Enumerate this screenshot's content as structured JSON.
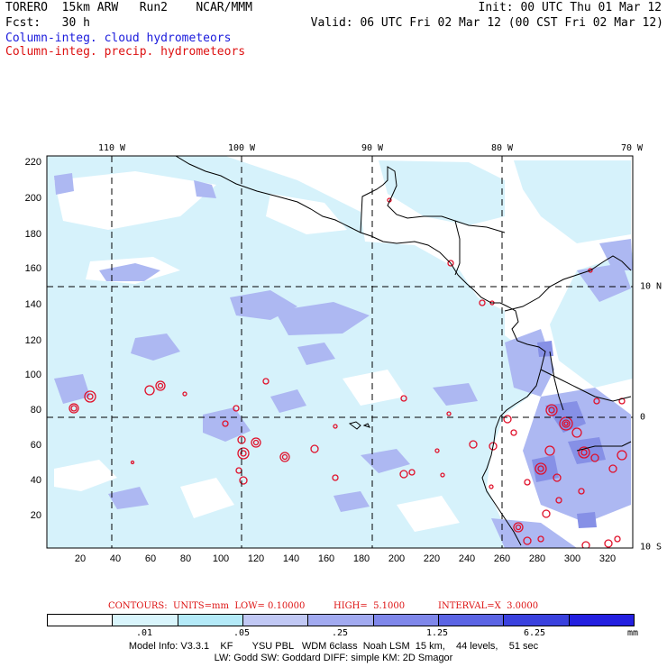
{
  "header": {
    "model_line": "TORERO  15km ARW   Run2    NCAR/MMM",
    "init": "Init: 00 UTC Thu 01 Mar 12",
    "fcst": "Fcst:   30 h",
    "valid": "Valid: 06 UTC Fri 02 Mar 12 (00 CST Fri 02 Mar 12)",
    "field1": "Column-integ. cloud hydrometeors",
    "field2": "Column-integ. precip. hydrometeors"
  },
  "map": {
    "lon_labels": [
      "110 W",
      "100 W",
      "90 W",
      "80 W",
      "70 W"
    ],
    "lat_labels": [
      "10 N",
      "0",
      "10 S"
    ],
    "y_ticks": [
      "220",
      "200",
      "180",
      "160",
      "140",
      "120",
      "100",
      "80",
      "60",
      "40",
      "20"
    ],
    "x_ticks": [
      "20",
      "40",
      "60",
      "80",
      "100",
      "120",
      "140",
      "160",
      "180",
      "200",
      "220",
      "240",
      "260",
      "280",
      "300",
      "320"
    ],
    "colors": {
      "water_bg": "#ffffff",
      "fill_light": "#d6f2fb",
      "fill_mid": "#adb8f2",
      "fill_strong": "#8690e6",
      "precip_contour": "#e0102a",
      "coast": "#000000"
    }
  },
  "contours": {
    "units": "CONTOURS:  UNITS=mm  LOW= 0.10000",
    "high": "HIGH=  5.1000",
    "interval": "INTERVAL=X  3.0000"
  },
  "colorbar": {
    "ticks": [
      ".01",
      ".05",
      ".25",
      "1.25",
      "6.25"
    ],
    "unit": "mm",
    "colors": [
      "#ffffff",
      "#d9f5fc",
      "#b4eaf8",
      "#c1c8f4",
      "#a2aaf0",
      "#7f87ea",
      "#5b64e4",
      "#3a41de",
      "#2420e0"
    ]
  },
  "footer": {
    "line1": "Model Info: V3.3.1    KF       YSU PBL   WDM 6class  Noah LSM  15 km,    44 levels,    51 sec",
    "line2": "LW: Godd SW: Goddard DIFF: simple KM: 2D Smagor"
  }
}
